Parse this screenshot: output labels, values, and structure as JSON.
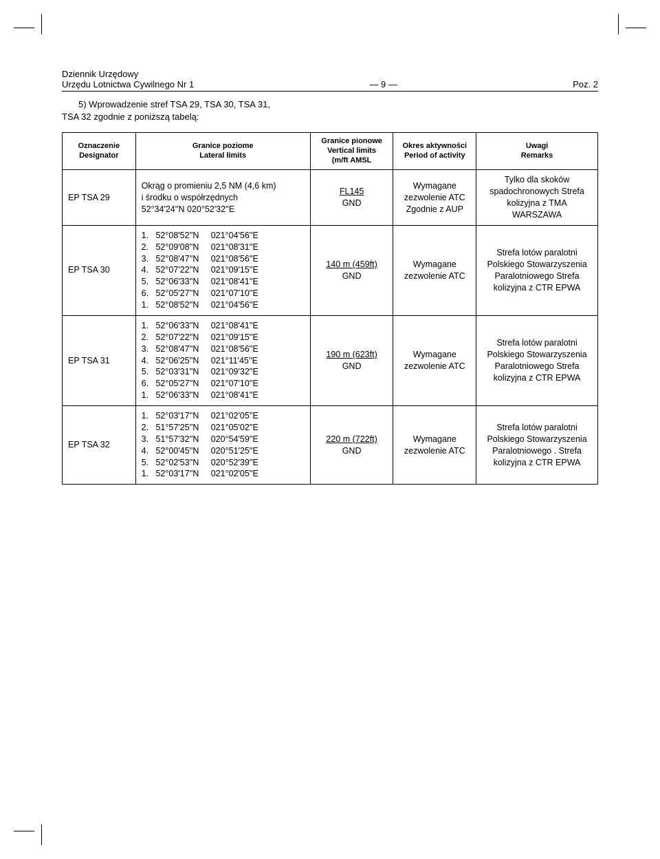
{
  "header": {
    "line1": "Dziennik Urzędowy",
    "line2_left": "Urzędu Lotnictwa Cywilnego Nr 1",
    "page_num": "—  9  —",
    "poz": "Poz. 2"
  },
  "intro": {
    "line1": "5)   Wprowadzenie stref TSA 29, TSA 30, TSA 31,",
    "line2": "TSA 32 zgodnie z poniższą tabelą:"
  },
  "table": {
    "columns": [
      {
        "pl": "Oznaczenie",
        "en": "Designator"
      },
      {
        "pl": "Granice poziome",
        "en": "Lateral limits"
      },
      {
        "pl": "Granice pionowe",
        "en": "Vertical limits",
        "sub": "(m/ft AMSL"
      },
      {
        "pl": "Okres aktywności",
        "en": "Period of activity"
      },
      {
        "pl": "Uwagi",
        "en": "Remarks"
      }
    ],
    "rows": [
      {
        "designator": "EP TSA 29",
        "lateral_text": "Okrąg o promieniu 2,5 NM (4,6 km)\ni środku  o współrzędnych\n52°34'24''N   020°52'32''E",
        "vertical_top": "FL145",
        "vertical_bottom": "GND",
        "period": "Wymagane zezwolenie ATC Zgodnie z AUP",
        "remarks": "Tylko dla skoków spadochronowych Strefa kolizyjna z TMA WARSZAWA"
      },
      {
        "designator": "EP TSA 30",
        "coords": [
          "1.   52°08'52''N     021°04'56''E",
          "2.   52°09'08''N     021°08'31''E",
          "3.   52°08'47''N     021°08'56''E",
          "4.   52°07'22''N     021°09'15''E",
          "5.   52°06'33''N     021°08'41''E",
          "6.   52°05'27''N     021°07'10''E",
          "1.   52°08'52''N     021°04'56''E"
        ],
        "vertical_top": "140 m (459ft)",
        "vertical_bottom": "GND",
        "period": "Wymagane zezwolenie ATC",
        "remarks": "Strefa lotów paralotni Polskiego Stowarzyszenia Paralotniowego Strefa kolizyjna z CTR EPWA"
      },
      {
        "designator": "EP TSA 31",
        "coords": [
          "1.   52°06'33''N     021°08'41''E",
          "2.   52°07'22''N     021°09'15''E",
          "3.   52°08'47''N     021°08'56''E",
          "4.   52°06'25''N     021°11'45''E",
          "5.   52°03'31''N     021°09'32''E",
          "6.   52°05'27''N     021°07'10''E",
          "1.   52°06'33''N     021°08'41''E"
        ],
        "vertical_top": "190 m (623ft)",
        "vertical_bottom": "GND",
        "period": "Wymagane zezwolenie ATC",
        "remarks": "Strefa lotów paralotni Polskiego Stowarzyszenia Paralotniowego Strefa kolizyjna z CTR EPWA"
      },
      {
        "designator": "EP TSA 32",
        "coords": [
          "1.   52°03'17''N     021°02'05''E",
          "2.   51°57'25''N     021°05'02''E",
          "3.   51°57'32''N     020°54'59''E",
          "4.   52°00'45''N     020°51'25''E",
          "5.   52°02'53''N     020°52'39''E",
          "1.   52°03'17''N     021°02'05''E"
        ],
        "vertical_top": "220 m (722ft)",
        "vertical_bottom": "GND",
        "period": "Wymagane zezwolenie ATC",
        "remarks": "Strefa lotów paralotni Polskiego Stowarzyszenia Paralotniowego . Strefa kolizyjna z CTR EPWA"
      }
    ]
  }
}
